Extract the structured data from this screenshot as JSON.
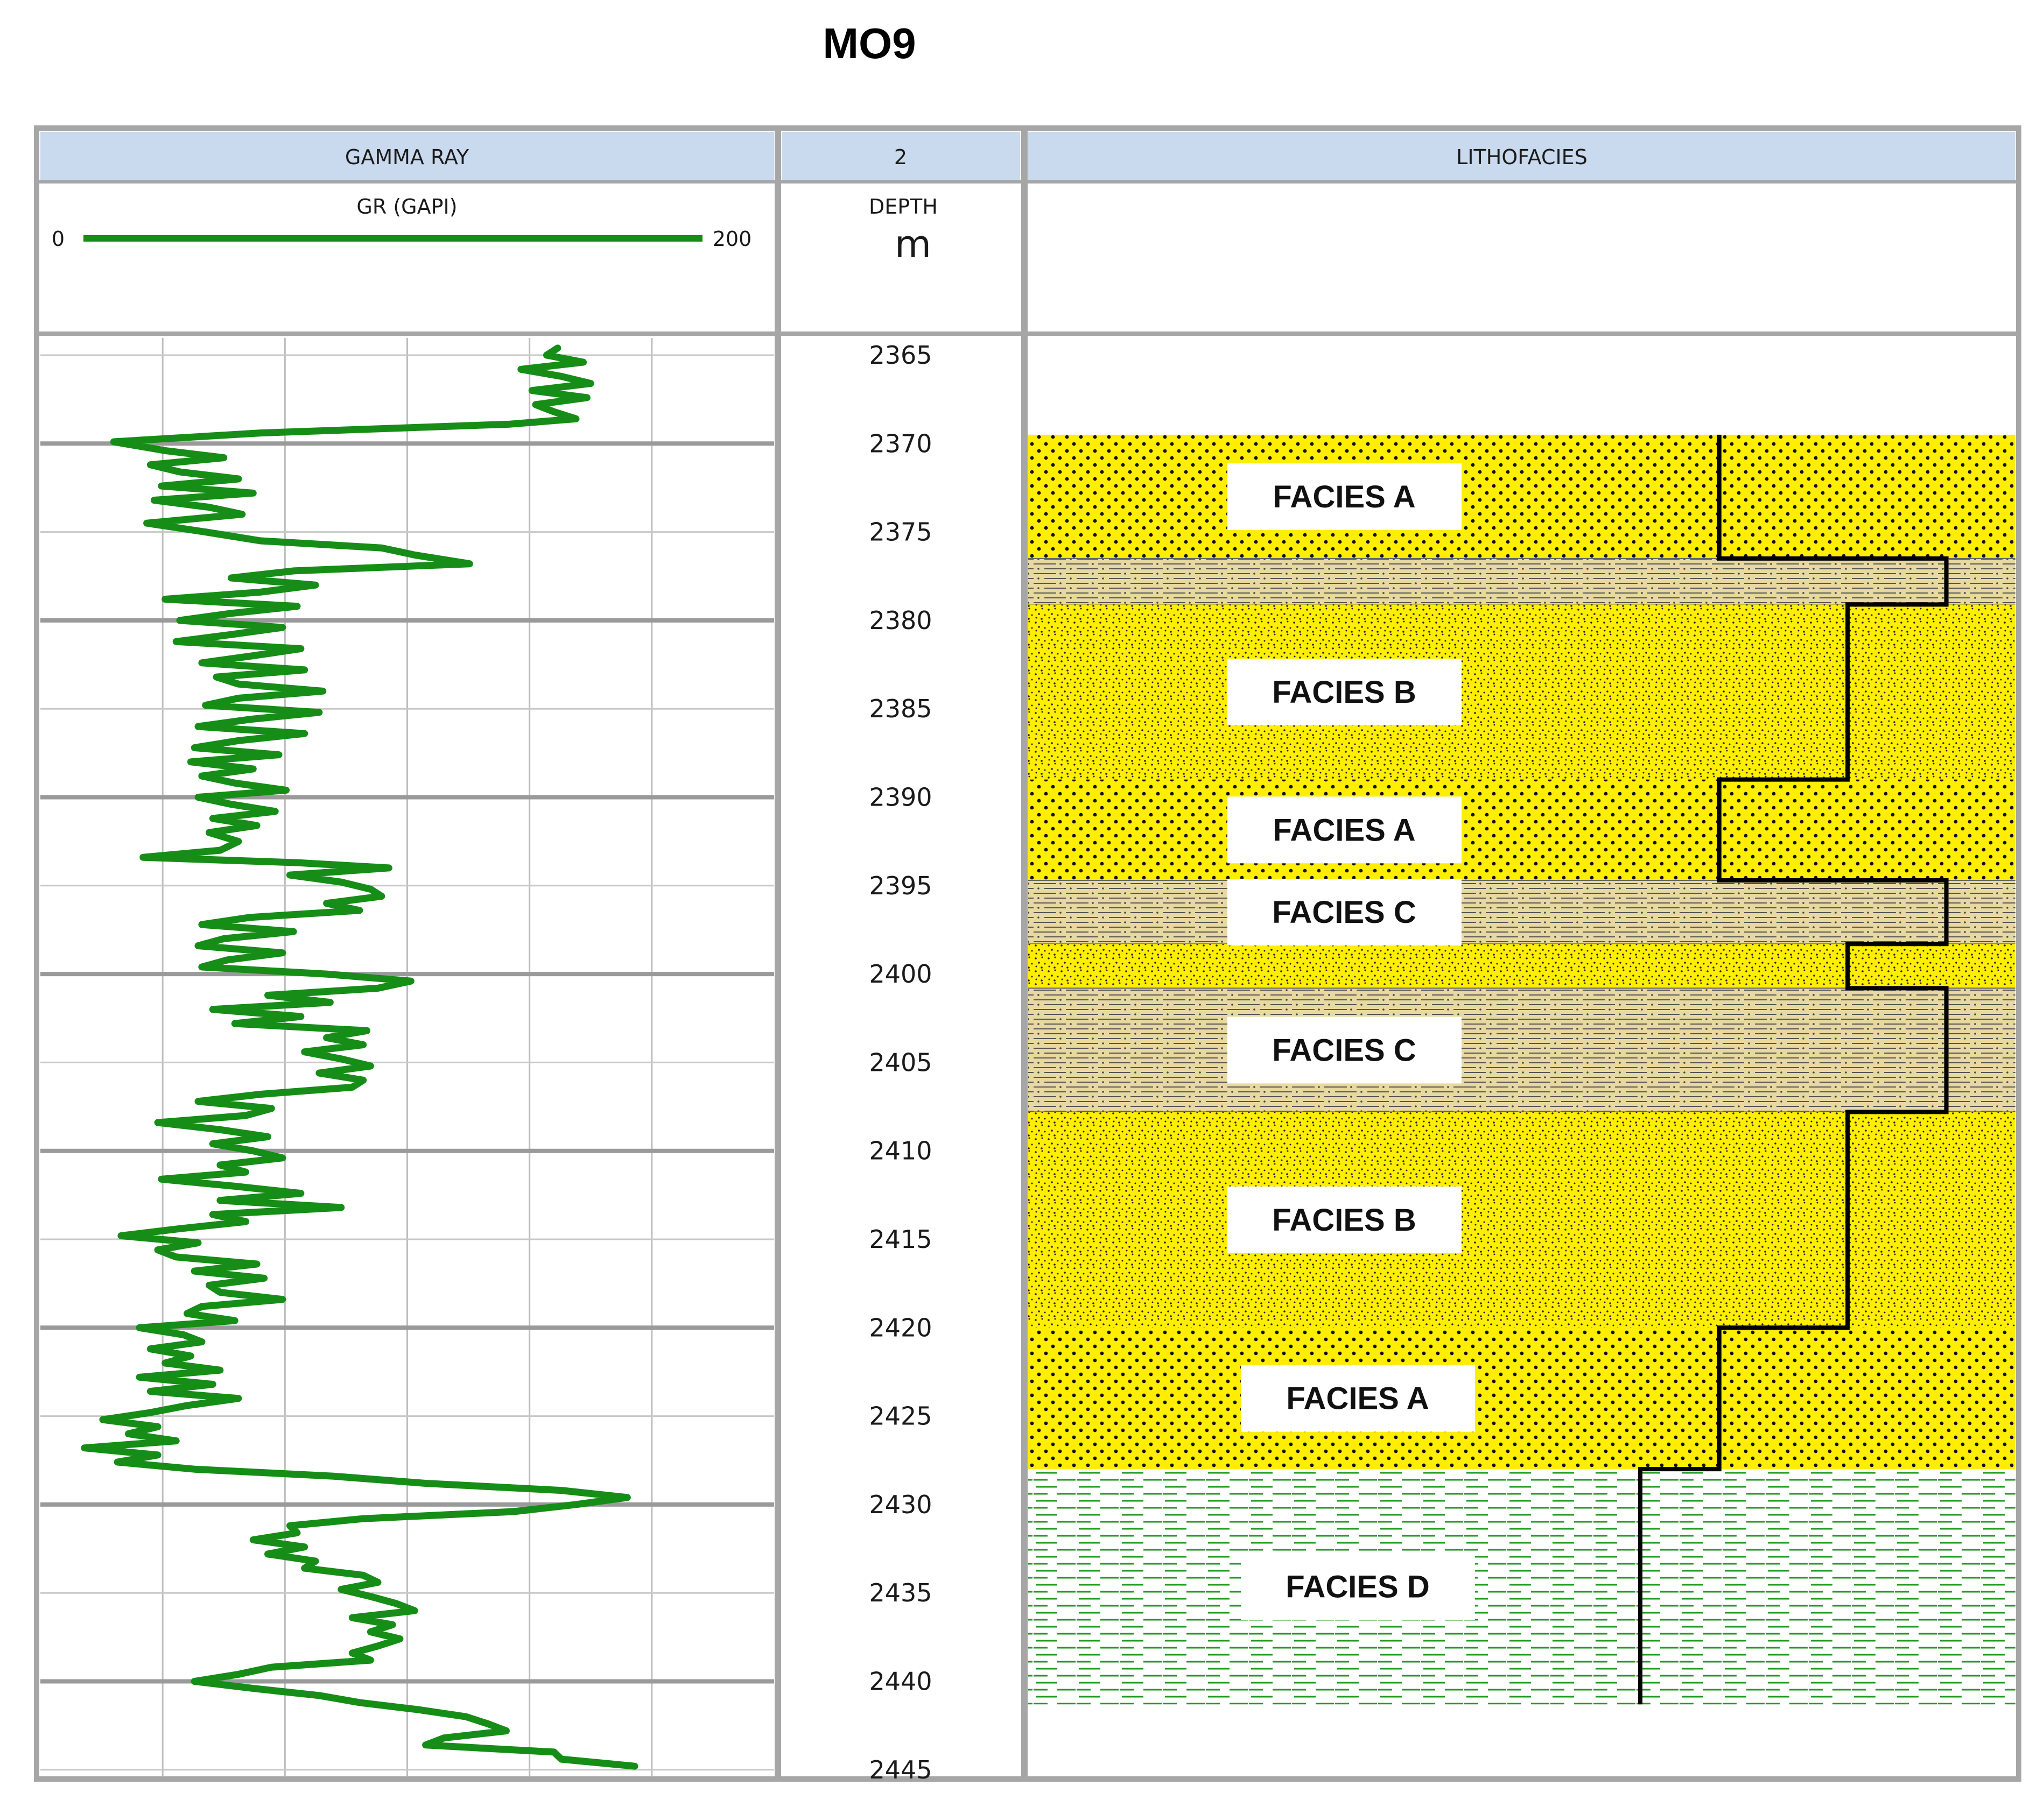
{
  "title": "MO9",
  "tracks": {
    "gamma_ray_header": "GAMMA RAY",
    "depth_header": "2",
    "lithofacies_header": "LITHOFACIES",
    "curve_name": "GR (GAPI)",
    "scale_min_label": "0",
    "scale_max_label": "200",
    "depth_label": "DEPTH",
    "depth_unit": "m"
  },
  "colors": {
    "header_fill": "#c9d9ee",
    "frame": "#a6a6a6",
    "grid": "#bdbdbd",
    "gr_curve": "#168d16",
    "sand": "#ffee00",
    "shale_fill": "#e8d9a0",
    "shale_lines": "#555555",
    "mudstone_lines": "#1f9a1f",
    "profile_line": "#000000"
  },
  "chart_data": {
    "type": "line",
    "title": "MO9",
    "xlabel": "GR (GAPI)",
    "ylabel": "DEPTH m",
    "xlim": [
      0,
      200
    ],
    "ylim": [
      2364,
      2446
    ],
    "depth_ticks": [
      2365,
      2370,
      2375,
      2380,
      2385,
      2390,
      2395,
      2400,
      2405,
      2410,
      2415,
      2420,
      2425,
      2430,
      2435,
      2440,
      2445
    ],
    "series": [
      {
        "points": [
          [
            2364.6,
            141
          ],
          [
            2365.0,
            138
          ],
          [
            2365.4,
            148
          ],
          [
            2365.8,
            131
          ],
          [
            2366.2,
            142
          ],
          [
            2366.6,
            150
          ],
          [
            2367.0,
            134
          ],
          [
            2367.4,
            149
          ],
          [
            2367.8,
            135
          ],
          [
            2368.2,
            140
          ],
          [
            2368.6,
            146
          ],
          [
            2368.9,
            128
          ],
          [
            2369.4,
            60
          ],
          [
            2369.9,
            20
          ],
          [
            2370.4,
            34
          ],
          [
            2370.8,
            50
          ],
          [
            2371.2,
            30
          ],
          [
            2371.6,
            38
          ],
          [
            2372.0,
            54
          ],
          [
            2372.4,
            33
          ],
          [
            2372.8,
            58
          ],
          [
            2373.2,
            31
          ],
          [
            2373.6,
            46
          ],
          [
            2374.0,
            55
          ],
          [
            2374.5,
            29
          ],
          [
            2375.0,
            45
          ],
          [
            2375.5,
            60
          ],
          [
            2375.9,
            93
          ],
          [
            2376.3,
            102
          ],
          [
            2376.8,
            117
          ],
          [
            2377.2,
            69
          ],
          [
            2377.6,
            52
          ],
          [
            2378.0,
            75
          ],
          [
            2378.4,
            60
          ],
          [
            2378.8,
            34
          ],
          [
            2379.2,
            70
          ],
          [
            2379.6,
            52
          ],
          [
            2380.0,
            38
          ],
          [
            2380.4,
            66
          ],
          [
            2380.8,
            52
          ],
          [
            2381.2,
            37
          ],
          [
            2381.6,
            71
          ],
          [
            2382.0,
            58
          ],
          [
            2382.4,
            44
          ],
          [
            2382.8,
            72
          ],
          [
            2383.2,
            48
          ],
          [
            2383.6,
            54
          ],
          [
            2384.0,
            77
          ],
          [
            2384.4,
            54
          ],
          [
            2384.8,
            45
          ],
          [
            2385.2,
            76
          ],
          [
            2385.6,
            57
          ],
          [
            2386.0,
            43
          ],
          [
            2386.4,
            72
          ],
          [
            2386.8,
            54
          ],
          [
            2387.2,
            42
          ],
          [
            2387.6,
            65
          ],
          [
            2388.0,
            41
          ],
          [
            2388.4,
            58
          ],
          [
            2388.8,
            44
          ],
          [
            2389.2,
            53
          ],
          [
            2389.6,
            67
          ],
          [
            2390.0,
            43
          ],
          [
            2390.4,
            52
          ],
          [
            2390.8,
            64
          ],
          [
            2391.2,
            47
          ],
          [
            2391.6,
            59
          ],
          [
            2392.0,
            46
          ],
          [
            2392.5,
            54
          ],
          [
            2393.0,
            49
          ],
          [
            2393.4,
            28
          ],
          [
            2393.7,
            70
          ],
          [
            2394.0,
            95
          ],
          [
            2394.4,
            68
          ],
          [
            2394.8,
            82
          ],
          [
            2395.2,
            90
          ],
          [
            2395.6,
            93
          ],
          [
            2396.0,
            78
          ],
          [
            2396.4,
            87
          ],
          [
            2396.8,
            57
          ],
          [
            2397.2,
            44
          ],
          [
            2397.6,
            69
          ],
          [
            2398.0,
            50
          ],
          [
            2398.4,
            43
          ],
          [
            2398.8,
            66
          ],
          [
            2399.2,
            51
          ],
          [
            2399.6,
            44
          ],
          [
            2400.0,
            78
          ],
          [
            2400.4,
            101
          ],
          [
            2400.8,
            92
          ],
          [
            2401.2,
            62
          ],
          [
            2401.6,
            79
          ],
          [
            2402.0,
            47
          ],
          [
            2402.4,
            71
          ],
          [
            2402.8,
            53
          ],
          [
            2403.2,
            89
          ],
          [
            2403.6,
            78
          ],
          [
            2404.0,
            88
          ],
          [
            2404.4,
            72
          ],
          [
            2404.8,
            82
          ],
          [
            2405.2,
            90
          ],
          [
            2405.6,
            76
          ],
          [
            2406.0,
            88
          ],
          [
            2406.4,
            85
          ],
          [
            2406.8,
            60
          ],
          [
            2407.2,
            43
          ],
          [
            2407.6,
            63
          ],
          [
            2408.0,
            56
          ],
          [
            2408.4,
            32
          ],
          [
            2408.8,
            49
          ],
          [
            2409.2,
            62
          ],
          [
            2409.6,
            47
          ],
          [
            2410.0,
            58
          ],
          [
            2410.4,
            66
          ],
          [
            2410.8,
            49
          ],
          [
            2411.2,
            56
          ],
          [
            2411.6,
            33
          ],
          [
            2412.0,
            53
          ],
          [
            2412.4,
            71
          ],
          [
            2412.8,
            49
          ],
          [
            2413.2,
            82
          ],
          [
            2413.6,
            47
          ],
          [
            2414.0,
            56
          ],
          [
            2414.4,
            38
          ],
          [
            2414.8,
            22
          ],
          [
            2415.2,
            43
          ],
          [
            2415.6,
            32
          ],
          [
            2416.0,
            37
          ],
          [
            2416.4,
            59
          ],
          [
            2416.8,
            42
          ],
          [
            2417.2,
            61
          ],
          [
            2417.6,
            46
          ],
          [
            2418.0,
            49
          ],
          [
            2418.4,
            66
          ],
          [
            2418.8,
            44
          ],
          [
            2419.2,
            40
          ],
          [
            2419.6,
            53
          ],
          [
            2420.0,
            27
          ],
          [
            2420.4,
            39
          ],
          [
            2420.8,
            44
          ],
          [
            2421.2,
            30
          ],
          [
            2421.6,
            41
          ],
          [
            2422.0,
            34
          ],
          [
            2422.4,
            49
          ],
          [
            2422.8,
            27
          ],
          [
            2423.2,
            47
          ],
          [
            2423.6,
            30
          ],
          [
            2424.0,
            54
          ],
          [
            2424.4,
            40
          ],
          [
            2424.8,
            30
          ],
          [
            2425.2,
            17
          ],
          [
            2425.6,
            32
          ],
          [
            2426.0,
            24
          ],
          [
            2426.4,
            37
          ],
          [
            2426.8,
            12
          ],
          [
            2427.2,
            32
          ],
          [
            2427.6,
            21
          ],
          [
            2428.0,
            42
          ],
          [
            2428.4,
            80
          ],
          [
            2428.8,
            105
          ],
          [
            2429.2,
            142
          ],
          [
            2429.6,
            160
          ],
          [
            2430.0,
            146
          ],
          [
            2430.4,
            129
          ],
          [
            2430.8,
            88
          ],
          [
            2431.2,
            68
          ],
          [
            2431.6,
            70
          ],
          [
            2432.0,
            58
          ],
          [
            2432.4,
            72
          ],
          [
            2432.8,
            62
          ],
          [
            2433.2,
            75
          ],
          [
            2433.6,
            72
          ],
          [
            2434.0,
            88
          ],
          [
            2434.4,
            92
          ],
          [
            2434.8,
            82
          ],
          [
            2435.2,
            90
          ],
          [
            2435.6,
            97
          ],
          [
            2436.0,
            102
          ],
          [
            2436.4,
            85
          ],
          [
            2436.8,
            96
          ],
          [
            2437.2,
            90
          ],
          [
            2437.6,
            98
          ],
          [
            2438.0,
            92
          ],
          [
            2438.4,
            85
          ],
          [
            2438.8,
            90
          ],
          [
            2439.2,
            63
          ],
          [
            2439.6,
            54
          ],
          [
            2440.0,
            42
          ],
          [
            2440.4,
            58
          ],
          [
            2440.8,
            76
          ],
          [
            2441.2,
            87
          ],
          [
            2441.6,
            103
          ],
          [
            2442.0,
            116
          ],
          [
            2442.4,
            122
          ],
          [
            2442.8,
            127
          ],
          [
            2443.2,
            110
          ],
          [
            2443.6,
            105
          ],
          [
            2444.0,
            140
          ],
          [
            2444.4,
            142
          ],
          [
            2444.8,
            162
          ]
        ]
      }
    ],
    "lithofacies": [
      {
        "top": 2369.5,
        "base": 2376.5,
        "pattern": "sand_dotted",
        "label": "FACIES A",
        "profile_level": 0.7
      },
      {
        "top": 2376.5,
        "base": 2379.1,
        "pattern": "shaly_sand",
        "label": "",
        "profile_level": 0.93
      },
      {
        "top": 2379.1,
        "base": 2389.0,
        "pattern": "sand_fine",
        "label": "FACIES B",
        "profile_level": 0.83
      },
      {
        "top": 2389.0,
        "base": 2394.7,
        "pattern": "sand_dotted",
        "label": "FACIES A",
        "profile_level": 0.7
      },
      {
        "top": 2394.7,
        "base": 2398.3,
        "pattern": "shaly_sand",
        "label": "FACIES C",
        "profile_level": 0.93
      },
      {
        "top": 2398.3,
        "base": 2400.8,
        "pattern": "sand_fine",
        "label": "",
        "profile_level": 0.83
      },
      {
        "top": 2400.8,
        "base": 2407.8,
        "pattern": "shaly_sand",
        "label": "FACIES C",
        "profile_level": 0.93
      },
      {
        "top": 2407.8,
        "base": 2420.0,
        "pattern": "sand_fine",
        "label": "FACIES B",
        "profile_level": 0.83
      },
      {
        "top": 2420.0,
        "base": 2428.0,
        "pattern": "sand_dotted",
        "label": "FACIES A",
        "profile_level": 0.7
      },
      {
        "top": 2428.0,
        "base": 2441.3,
        "pattern": "mudstone",
        "label": "FACIES D",
        "profile_level": 0.62
      }
    ]
  }
}
